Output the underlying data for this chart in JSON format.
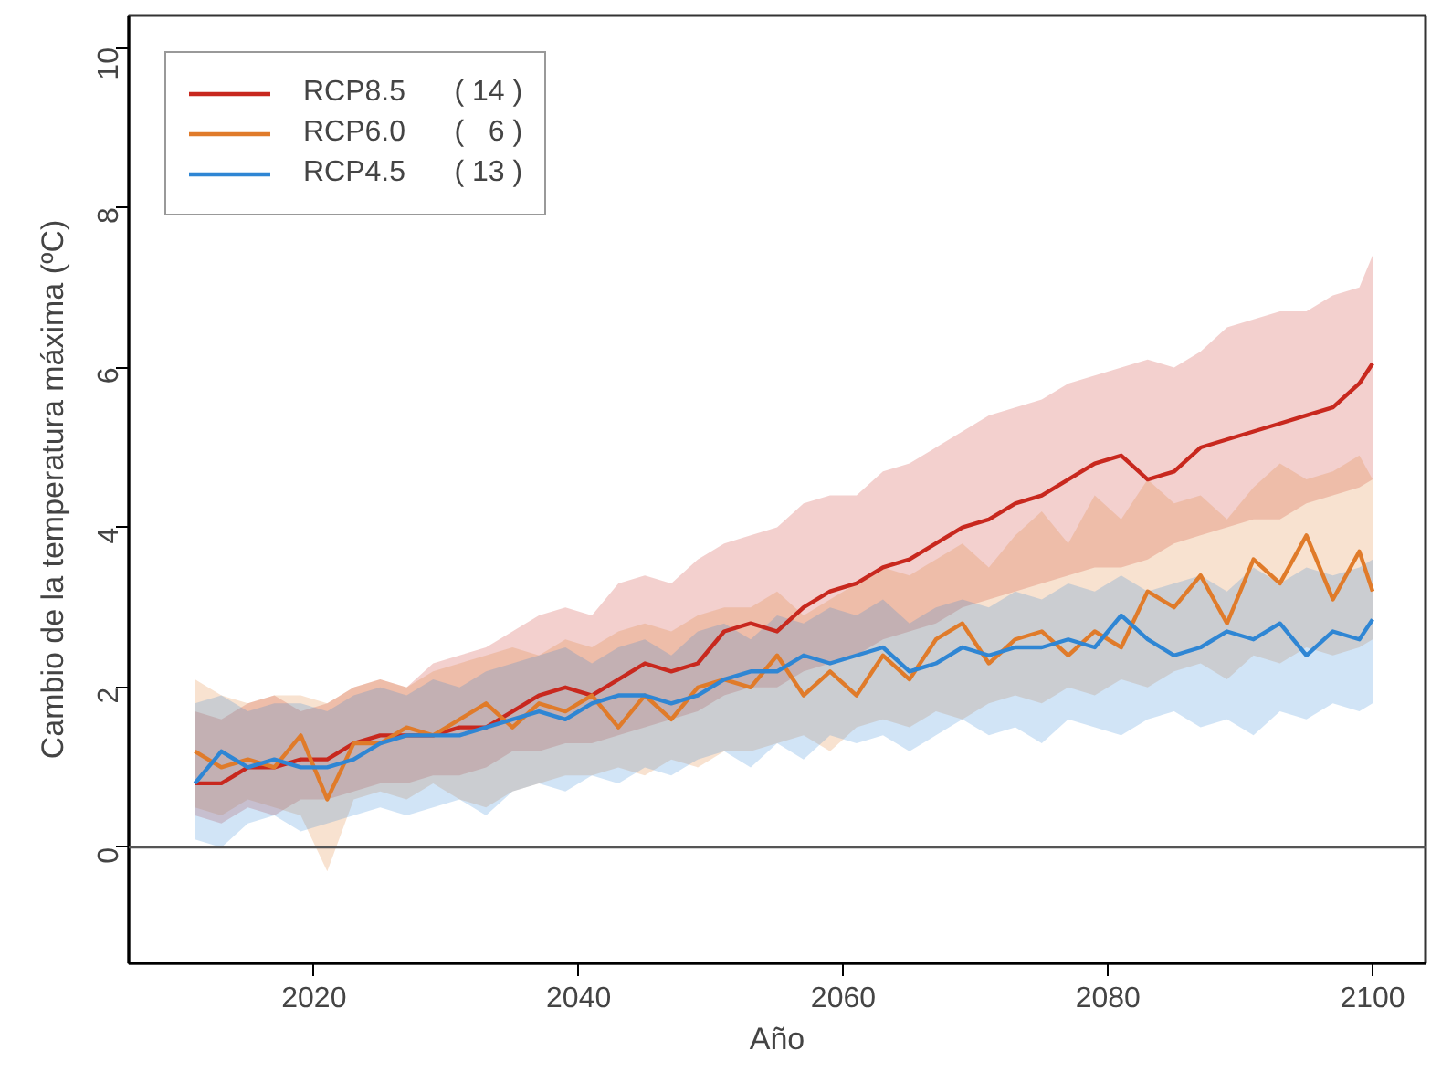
{
  "chart_data": {
    "type": "line",
    "xlabel": "Año",
    "ylabel": "Cambio de la temperatura máxima (ºC)",
    "x": [
      2011,
      2013,
      2015,
      2017,
      2019,
      2021,
      2023,
      2025,
      2027,
      2029,
      2031,
      2033,
      2035,
      2037,
      2039,
      2041,
      2043,
      2045,
      2047,
      2049,
      2051,
      2053,
      2055,
      2057,
      2059,
      2061,
      2063,
      2065,
      2067,
      2069,
      2071,
      2073,
      2075,
      2077,
      2079,
      2081,
      2083,
      2085,
      2087,
      2089,
      2091,
      2093,
      2095,
      2097,
      2099,
      2100
    ],
    "xlim": [
      2006,
      2104
    ],
    "xticks": [
      2020,
      2040,
      2060,
      2080,
      2100
    ],
    "ylim": [
      -1.45,
      10.4
    ],
    "yticks": [
      0,
      2,
      4,
      6,
      8,
      10
    ],
    "grid": false,
    "legend": "top left",
    "ref_lines": [
      {
        "axis": "y",
        "value": 0,
        "color": "#555555"
      }
    ],
    "series": [
      {
        "name": "RCP8.5      ( 14 )",
        "color": "#c8281e",
        "values": [
          0.8,
          0.8,
          1.0,
          1.0,
          1.1,
          1.1,
          1.3,
          1.4,
          1.4,
          1.4,
          1.5,
          1.5,
          1.7,
          1.9,
          2.0,
          1.9,
          2.1,
          2.3,
          2.2,
          2.3,
          2.7,
          2.8,
          2.7,
          3.0,
          3.2,
          3.3,
          3.5,
          3.6,
          3.8,
          4.0,
          4.1,
          4.3,
          4.4,
          4.6,
          4.8,
          4.9,
          4.6,
          4.7,
          5.0,
          5.1,
          5.2,
          5.3,
          5.4,
          5.5,
          5.8,
          6.05
        ],
        "upper": [
          1.7,
          1.6,
          1.8,
          1.9,
          1.7,
          1.8,
          2.0,
          2.1,
          2.0,
          2.3,
          2.4,
          2.5,
          2.7,
          2.9,
          3.0,
          2.9,
          3.3,
          3.4,
          3.3,
          3.6,
          3.8,
          3.9,
          4.0,
          4.3,
          4.4,
          4.4,
          4.7,
          4.8,
          5.0,
          5.2,
          5.4,
          5.5,
          5.6,
          5.8,
          5.9,
          6.0,
          6.1,
          6.0,
          6.2,
          6.5,
          6.6,
          6.7,
          6.7,
          6.9,
          7.0,
          7.4
        ],
        "lower": [
          0.4,
          0.3,
          0.5,
          0.4,
          0.6,
          0.6,
          0.7,
          0.8,
          0.8,
          0.9,
          0.9,
          1.0,
          1.2,
          1.2,
          1.3,
          1.3,
          1.4,
          1.5,
          1.6,
          1.7,
          1.9,
          2.0,
          2.0,
          2.2,
          2.3,
          2.4,
          2.6,
          2.7,
          2.8,
          3.0,
          3.1,
          3.2,
          3.3,
          3.4,
          3.5,
          3.5,
          3.6,
          3.8,
          3.9,
          4.0,
          4.1,
          4.1,
          4.3,
          4.4,
          4.5,
          4.6
        ]
      },
      {
        "name": "RCP6.0      (   6 )",
        "color": "#e07b2a",
        "values": [
          1.2,
          1.0,
          1.1,
          1.0,
          1.4,
          0.6,
          1.3,
          1.3,
          1.5,
          1.4,
          1.6,
          1.8,
          1.5,
          1.8,
          1.7,
          1.9,
          1.5,
          1.9,
          1.6,
          2.0,
          2.1,
          2.0,
          2.4,
          1.9,
          2.2,
          1.9,
          2.4,
          2.1,
          2.6,
          2.8,
          2.3,
          2.6,
          2.7,
          2.4,
          2.7,
          2.5,
          3.2,
          3.0,
          3.4,
          2.8,
          3.6,
          3.3,
          3.9,
          3.1,
          3.7,
          3.2
        ],
        "upper": [
          2.1,
          1.9,
          1.8,
          1.9,
          1.9,
          1.8,
          2.0,
          2.1,
          2.0,
          2.2,
          2.3,
          2.4,
          2.5,
          2.4,
          2.6,
          2.5,
          2.7,
          2.8,
          2.7,
          2.9,
          3.0,
          3.0,
          3.2,
          2.9,
          3.1,
          3.3,
          3.5,
          3.4,
          3.6,
          3.8,
          3.5,
          3.9,
          4.2,
          3.8,
          4.4,
          4.1,
          4.6,
          4.3,
          4.4,
          4.1,
          4.5,
          4.8,
          4.6,
          4.7,
          4.9,
          4.6
        ],
        "lower": [
          0.5,
          0.4,
          0.6,
          0.5,
          0.4,
          -0.3,
          0.6,
          0.7,
          0.6,
          0.8,
          0.6,
          0.5,
          0.7,
          0.8,
          0.9,
          0.9,
          1.0,
          0.9,
          1.1,
          1.0,
          1.2,
          1.2,
          1.3,
          1.4,
          1.2,
          1.5,
          1.6,
          1.5,
          1.7,
          1.6,
          1.8,
          1.9,
          1.8,
          2.0,
          1.9,
          2.1,
          2.0,
          2.2,
          2.3,
          2.1,
          2.4,
          2.3,
          2.5,
          2.4,
          2.5,
          2.6
        ]
      },
      {
        "name": "RCP4.5      ( 13 )",
        "color": "#2f86d4",
        "values": [
          0.8,
          1.2,
          1.0,
          1.1,
          1.0,
          1.0,
          1.1,
          1.3,
          1.4,
          1.4,
          1.4,
          1.5,
          1.6,
          1.7,
          1.6,
          1.8,
          1.9,
          1.9,
          1.8,
          1.9,
          2.1,
          2.2,
          2.2,
          2.4,
          2.3,
          2.4,
          2.5,
          2.2,
          2.3,
          2.5,
          2.4,
          2.5,
          2.5,
          2.6,
          2.5,
          2.9,
          2.6,
          2.4,
          2.5,
          2.7,
          2.6,
          2.8,
          2.4,
          2.7,
          2.6,
          2.85
        ],
        "upper": [
          1.8,
          1.9,
          1.7,
          1.8,
          1.8,
          1.7,
          1.9,
          2.0,
          1.9,
          2.1,
          2.0,
          2.2,
          2.3,
          2.4,
          2.5,
          2.3,
          2.5,
          2.6,
          2.4,
          2.7,
          2.8,
          2.6,
          2.9,
          2.8,
          3.0,
          2.9,
          3.1,
          2.8,
          3.0,
          3.1,
          3.0,
          3.2,
          3.1,
          3.3,
          3.2,
          3.4,
          3.2,
          3.3,
          3.4,
          3.2,
          3.5,
          3.3,
          3.5,
          3.4,
          3.5,
          3.6
        ],
        "lower": [
          0.1,
          0.0,
          0.3,
          0.4,
          0.2,
          0.3,
          0.4,
          0.5,
          0.4,
          0.5,
          0.6,
          0.4,
          0.7,
          0.8,
          0.7,
          0.9,
          0.8,
          1.0,
          0.9,
          1.1,
          1.2,
          1.0,
          1.3,
          1.1,
          1.4,
          1.3,
          1.4,
          1.2,
          1.4,
          1.6,
          1.4,
          1.5,
          1.3,
          1.6,
          1.5,
          1.4,
          1.6,
          1.7,
          1.5,
          1.6,
          1.4,
          1.7,
          1.6,
          1.8,
          1.7,
          1.8
        ]
      }
    ]
  }
}
